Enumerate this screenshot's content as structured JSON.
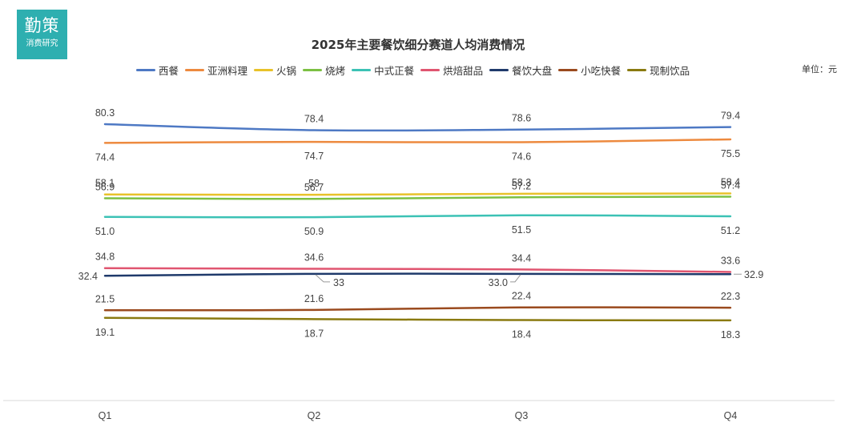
{
  "logo": {
    "line1": "勤策",
    "line2": "消费研究"
  },
  "chart_data": {
    "type": "line",
    "title": "2025年主要餐饮细分赛道人均消费情况",
    "unit_label": "单位：元",
    "categories": [
      "Q1",
      "Q2",
      "Q3",
      "Q4"
    ],
    "ylim": [
      0,
      100
    ],
    "grid": false,
    "legend_position": "top",
    "series": [
      {
        "name": "西餐",
        "color": "#4e79c4",
        "values": [
          80.3,
          78.4,
          78.6,
          79.4
        ],
        "labels": [
          "80.3",
          "78.4",
          "78.6",
          "79.4"
        ]
      },
      {
        "name": "亚洲料理",
        "color": "#ed8a3f",
        "values": [
          74.4,
          74.7,
          74.6,
          75.5
        ],
        "labels": [
          "74.4",
          "74.7",
          "74.6",
          "75.5"
        ]
      },
      {
        "name": "火锅",
        "color": "#e8c22a",
        "values": [
          58.1,
          58,
          58.3,
          58.4
        ],
        "labels": [
          "58.1",
          "58",
          "58.3",
          "58.4"
        ]
      },
      {
        "name": "烧烤",
        "color": "#7cc043",
        "values": [
          56.9,
          56.7,
          57.2,
          57.4
        ],
        "labels": [
          "56.9",
          "56.7",
          "57.2",
          "57.4"
        ]
      },
      {
        "name": "中式正餐",
        "color": "#3cc2b5",
        "values": [
          51.0,
          50.9,
          51.5,
          51.2
        ],
        "labels": [
          "51.0",
          "50.9",
          "51.5",
          "51.2"
        ]
      },
      {
        "name": "烘焙甜品",
        "color": "#e05570",
        "values": [
          34.8,
          34.6,
          34.4,
          33.6
        ],
        "labels": [
          "34.8",
          "34.6",
          "34.4",
          "33.6"
        ]
      },
      {
        "name": "餐饮大盘",
        "color": "#1f3a6b",
        "values": [
          32.4,
          33,
          33.0,
          32.9
        ],
        "labels": [
          "32.4",
          "33",
          "33.0",
          "32.9"
        ]
      },
      {
        "name": "小吃快餐",
        "color": "#9a4a1e",
        "values": [
          21.5,
          21.6,
          22.4,
          22.3
        ],
        "labels": [
          "21.5",
          "21.6",
          "22.4",
          "22.3"
        ]
      },
      {
        "name": "现制饮品",
        "color": "#8a7a10",
        "values": [
          19.1,
          18.7,
          18.4,
          18.3
        ],
        "labels": [
          "19.1",
          "18.7",
          "18.4",
          "18.3"
        ]
      }
    ]
  }
}
